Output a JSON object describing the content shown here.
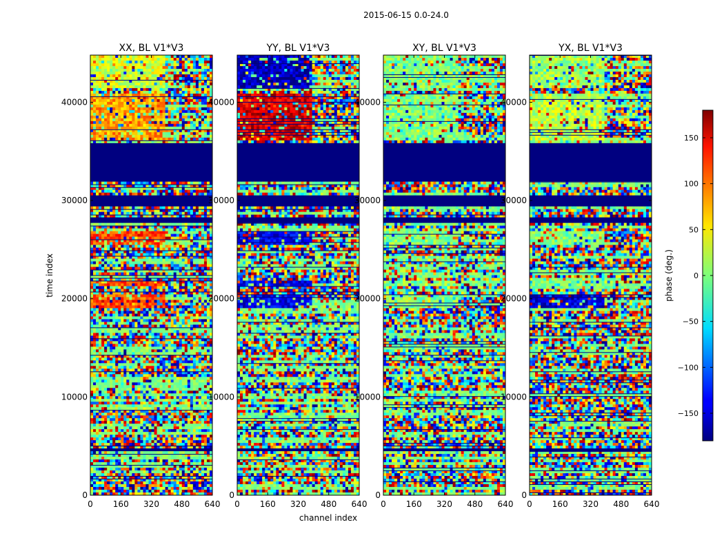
{
  "chart_data": {
    "type": "heatmap",
    "suptitle": "2015-06-15 0.0-24.0",
    "xlabel": "channel index",
    "ylabel": "time index",
    "x_range": [
      0,
      640
    ],
    "y_range": [
      0,
      44800
    ],
    "x_ticks": [
      0,
      160,
      320,
      480,
      640
    ],
    "y_ticks": [
      0,
      10000,
      20000,
      30000,
      40000
    ],
    "colorbar": {
      "label": "phase (deg.)",
      "range": [
        -180,
        180
      ],
      "ticks": [
        -150,
        -100,
        -50,
        0,
        50,
        100,
        150
      ],
      "tick_labels": [
        "−150",
        "−100",
        "−50",
        "0",
        "50",
        "100",
        "150"
      ],
      "colormap": "jet"
    },
    "panels": [
      {
        "title": "XX, BL V1*V3"
      },
      {
        "title": "YY, BL V1*V3"
      },
      {
        "title": "XY, BL V1*V3"
      },
      {
        "title": "YX, BL V1*V3"
      }
    ],
    "flagged_value": -180,
    "flagged_time_ranges": [
      [
        31800,
        35800
      ],
      [
        29400,
        30400
      ],
      [
        27700,
        28400
      ],
      [
        4400,
        4700
      ]
    ],
    "bands": [
      {
        "t0": 41500,
        "t1": 44800,
        "values": [
          30,
          -160,
          0,
          10
        ]
      },
      {
        "t0": 36000,
        "t1": 41000,
        "values": [
          80,
          150,
          0,
          20
        ]
      },
      {
        "t0": 25500,
        "t1": 26800,
        "values": [
          110,
          -140,
          0,
          0
        ]
      },
      {
        "t0": 21300,
        "t1": 21800,
        "values": [
          110,
          -140,
          0,
          0
        ]
      },
      {
        "t0": 19000,
        "t1": 20500,
        "values": [
          110,
          -140,
          0,
          -150
        ]
      }
    ]
  }
}
